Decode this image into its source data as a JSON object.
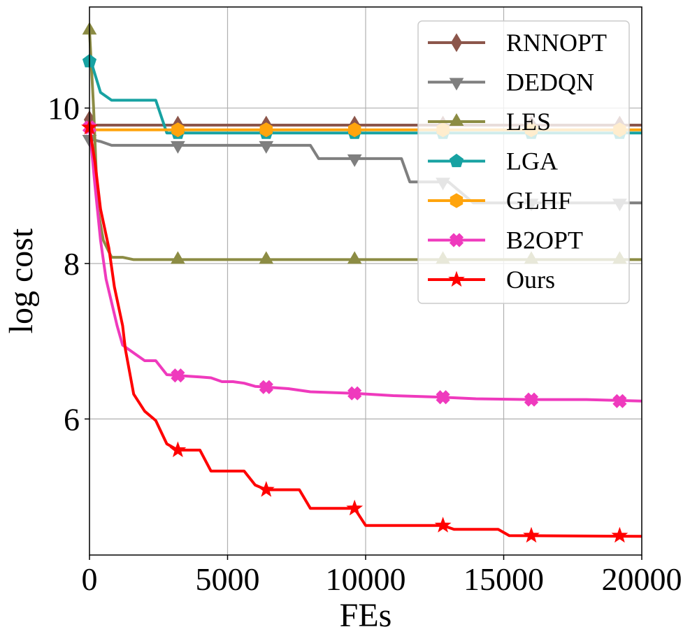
{
  "chart_data": {
    "type": "line",
    "title": "",
    "xlabel": "FEs",
    "ylabel": "log cost",
    "xlim": [
      0,
      20000
    ],
    "ylim": [
      4.25,
      11.3
    ],
    "grid": true,
    "legend_position": "top-right",
    "x_ticks": [
      0,
      5000,
      10000,
      15000,
      20000
    ],
    "x_tick_labels": [
      "0",
      "5000",
      "10000",
      "15000",
      "20000"
    ],
    "y_ticks": [
      6,
      8,
      10
    ],
    "y_tick_labels": [
      "6",
      "8",
      "10"
    ],
    "series": [
      {
        "name": "RNNOPT",
        "color": "#8c564b",
        "marker": "diamond",
        "points": [
          [
            0,
            9.85
          ],
          [
            100,
            9.78
          ],
          [
            20000,
            9.78
          ]
        ],
        "markers": [
          [
            0,
            9.85
          ],
          [
            3200,
            9.78
          ],
          [
            6400,
            9.78
          ],
          [
            9600,
            9.78
          ],
          [
            12800,
            9.78
          ],
          [
            16000,
            9.78
          ],
          [
            19200,
            9.78
          ]
        ]
      },
      {
        "name": "DEDQN",
        "color": "#7f7f7f",
        "marker": "triangle-down",
        "points": [
          [
            0,
            9.6
          ],
          [
            400,
            9.57
          ],
          [
            800,
            9.52
          ],
          [
            8000,
            9.52
          ],
          [
            8300,
            9.35
          ],
          [
            11300,
            9.35
          ],
          [
            11600,
            9.05
          ],
          [
            13000,
            9.05
          ],
          [
            13900,
            8.78
          ],
          [
            20000,
            8.78
          ]
        ],
        "markers": [
          [
            0,
            9.6
          ],
          [
            3200,
            9.52
          ],
          [
            6400,
            9.52
          ],
          [
            9600,
            9.35
          ],
          [
            12800,
            9.05
          ],
          [
            16000,
            8.78
          ],
          [
            19200,
            8.78
          ]
        ]
      },
      {
        "name": "LES",
        "color": "#8c8c44",
        "marker": "triangle-up",
        "points": [
          [
            0,
            11.0
          ],
          [
            150,
            10.0
          ],
          [
            300,
            8.7
          ],
          [
            500,
            8.3
          ],
          [
            800,
            8.08
          ],
          [
            1200,
            8.08
          ],
          [
            1600,
            8.05
          ],
          [
            20000,
            8.05
          ]
        ],
        "markers": [
          [
            0,
            11.0
          ],
          [
            3200,
            8.05
          ],
          [
            6400,
            8.05
          ],
          [
            9600,
            8.05
          ],
          [
            12800,
            8.05
          ],
          [
            16000,
            8.05
          ],
          [
            19200,
            8.05
          ]
        ]
      },
      {
        "name": "LGA",
        "color": "#17a2a2",
        "marker": "pentagon",
        "points": [
          [
            0,
            10.6
          ],
          [
            100,
            10.55
          ],
          [
            400,
            10.2
          ],
          [
            800,
            10.1
          ],
          [
            2400,
            10.1
          ],
          [
            2800,
            9.68
          ],
          [
            20000,
            9.68
          ]
        ],
        "markers": [
          [
            0,
            10.6
          ],
          [
            3200,
            9.68
          ],
          [
            6400,
            9.68
          ],
          [
            9600,
            9.68
          ],
          [
            12800,
            9.68
          ],
          [
            16000,
            9.68
          ],
          [
            19200,
            9.68
          ]
        ]
      },
      {
        "name": "GLHF",
        "color": "#ffa40d",
        "marker": "hexagon",
        "points": [
          [
            0,
            9.72
          ],
          [
            20000,
            9.72
          ]
        ],
        "markers": [
          [
            3200,
            9.72
          ],
          [
            6400,
            9.72
          ],
          [
            9600,
            9.72
          ],
          [
            12800,
            9.72
          ],
          [
            16000,
            9.72
          ],
          [
            19200,
            9.72
          ]
        ]
      },
      {
        "name": "B2OPT",
        "color": "#ef3abd",
        "marker": "x",
        "points": [
          [
            0,
            9.75
          ],
          [
            200,
            9.0
          ],
          [
            400,
            8.3
          ],
          [
            600,
            7.8
          ],
          [
            800,
            7.5
          ],
          [
            1000,
            7.2
          ],
          [
            1200,
            6.95
          ],
          [
            1600,
            6.85
          ],
          [
            2000,
            6.75
          ],
          [
            2400,
            6.75
          ],
          [
            2800,
            6.57
          ],
          [
            3200,
            6.56
          ],
          [
            3600,
            6.55
          ],
          [
            4000,
            6.54
          ],
          [
            4400,
            6.53
          ],
          [
            4800,
            6.48
          ],
          [
            5200,
            6.48
          ],
          [
            5600,
            6.46
          ],
          [
            6000,
            6.42
          ],
          [
            6400,
            6.41
          ],
          [
            7200,
            6.39
          ],
          [
            8000,
            6.35
          ],
          [
            9600,
            6.33
          ],
          [
            11000,
            6.3
          ],
          [
            12800,
            6.28
          ],
          [
            14000,
            6.26
          ],
          [
            16000,
            6.25
          ],
          [
            18000,
            6.25
          ],
          [
            20000,
            6.23
          ]
        ],
        "markers": [
          [
            0,
            9.75
          ],
          [
            3200,
            6.56
          ],
          [
            6400,
            6.41
          ],
          [
            9600,
            6.33
          ],
          [
            12800,
            6.28
          ],
          [
            16000,
            6.25
          ],
          [
            19200,
            6.23
          ]
        ]
      },
      {
        "name": "Ours",
        "color": "#ff0000",
        "marker": "star",
        "points": [
          [
            0,
            9.75
          ],
          [
            200,
            9.3
          ],
          [
            400,
            8.7
          ],
          [
            700,
            8.2
          ],
          [
            900,
            7.7
          ],
          [
            1200,
            7.2
          ],
          [
            1300,
            6.9
          ],
          [
            1600,
            6.32
          ],
          [
            2000,
            6.1
          ],
          [
            2400,
            5.98
          ],
          [
            2800,
            5.68
          ],
          [
            3200,
            5.6
          ],
          [
            4000,
            5.6
          ],
          [
            4400,
            5.33
          ],
          [
            5600,
            5.33
          ],
          [
            6000,
            5.15
          ],
          [
            6400,
            5.09
          ],
          [
            7600,
            5.09
          ],
          [
            8000,
            4.85
          ],
          [
            9600,
            4.85
          ],
          [
            10000,
            4.63
          ],
          [
            12800,
            4.63
          ],
          [
            13200,
            4.58
          ],
          [
            14800,
            4.58
          ],
          [
            15200,
            4.5
          ],
          [
            20000,
            4.49
          ]
        ],
        "markers": [
          [
            0,
            9.75
          ],
          [
            3200,
            5.6
          ],
          [
            6400,
            5.09
          ],
          [
            9600,
            4.85
          ],
          [
            12800,
            4.63
          ],
          [
            16000,
            4.5
          ],
          [
            19200,
            4.5
          ]
        ]
      }
    ]
  }
}
